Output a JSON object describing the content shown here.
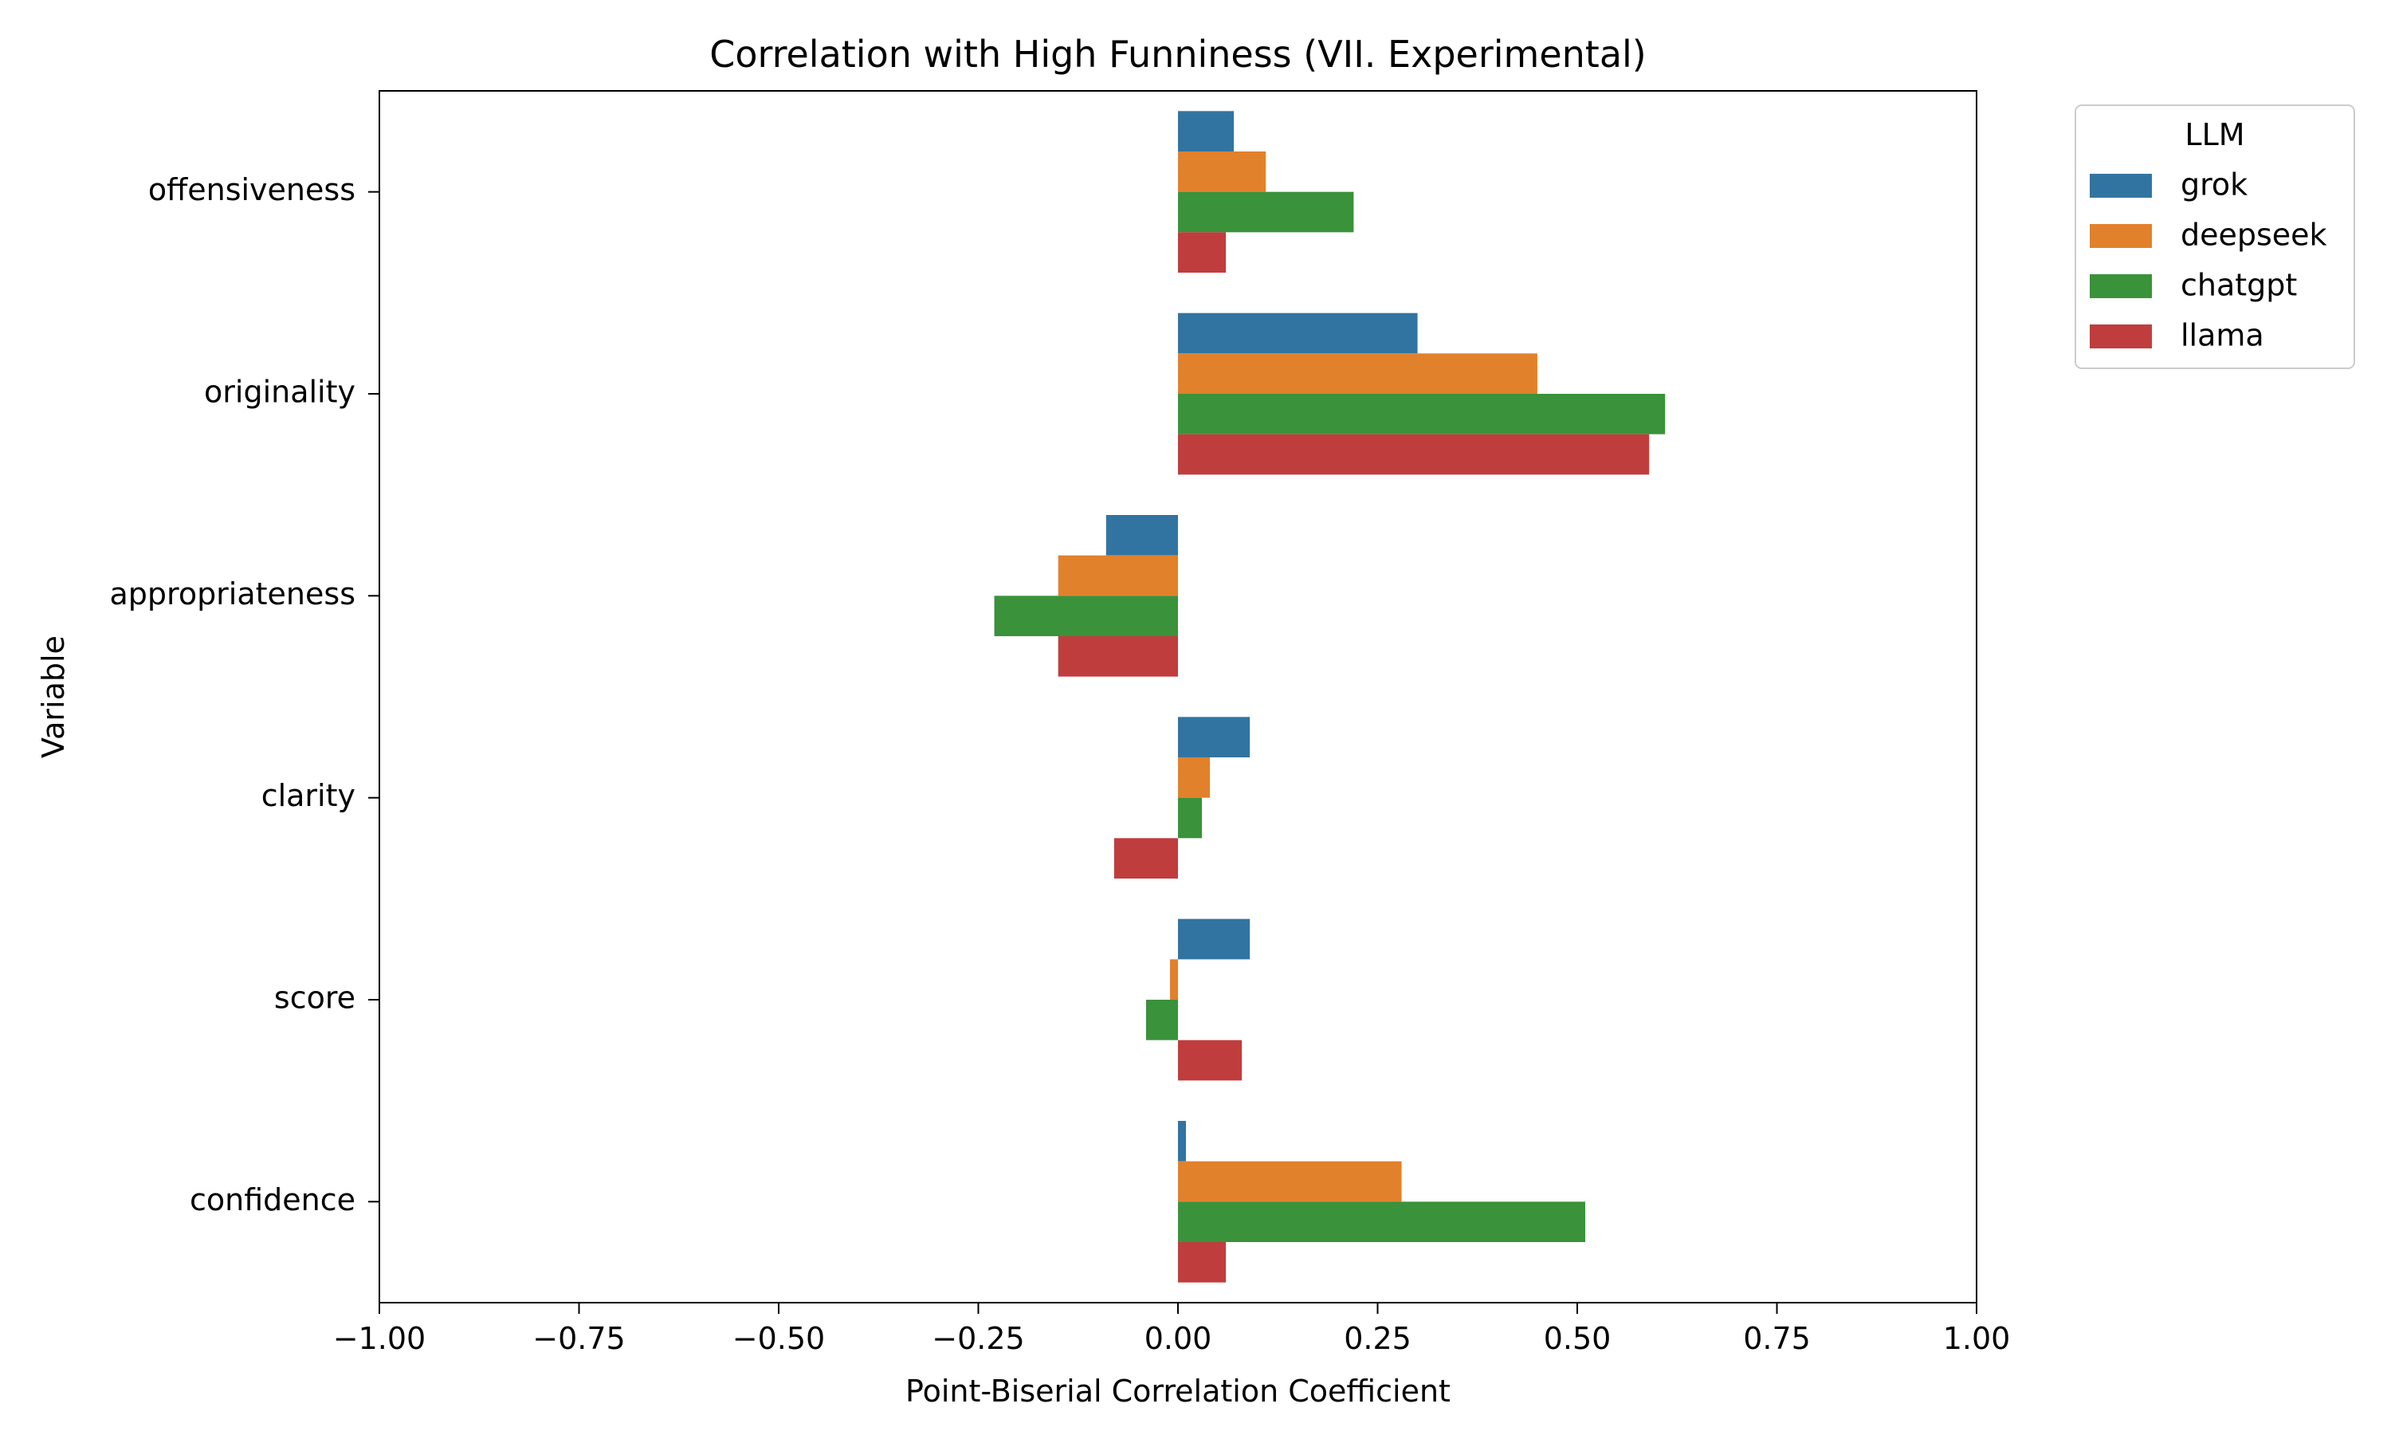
{
  "chart_data": {
    "type": "bar",
    "orientation": "horizontal",
    "title": "Correlation with High Funniness (VII. Experimental)",
    "xlabel": "Point-Biserial Correlation Coefficient",
    "ylabel": "Variable",
    "xlim": [
      -1.0,
      1.0
    ],
    "x_ticks": [
      "−1.00",
      "−0.75",
      "−0.50",
      "−0.25",
      "0.00",
      "0.25",
      "0.50",
      "0.75",
      "1.00"
    ],
    "categories": [
      "offensiveness",
      "originality",
      "appropriateness",
      "clarity",
      "score",
      "confidence"
    ],
    "legend_title": "LLM",
    "legend_position": "outside-right-top",
    "grid": false,
    "series": [
      {
        "name": "grok",
        "color": "#3274a1",
        "values": [
          0.07,
          0.3,
          -0.09,
          0.09,
          0.09,
          0.01
        ]
      },
      {
        "name": "deepseek",
        "color": "#e1812c",
        "values": [
          0.11,
          0.45,
          -0.15,
          0.04,
          -0.01,
          0.28
        ]
      },
      {
        "name": "chatgpt",
        "color": "#3a923a",
        "values": [
          0.22,
          0.61,
          -0.23,
          0.03,
          -0.04,
          0.51
        ]
      },
      {
        "name": "llama",
        "color": "#c03d3e",
        "values": [
          0.06,
          0.59,
          -0.15,
          -0.08,
          0.08,
          0.06
        ]
      }
    ]
  }
}
